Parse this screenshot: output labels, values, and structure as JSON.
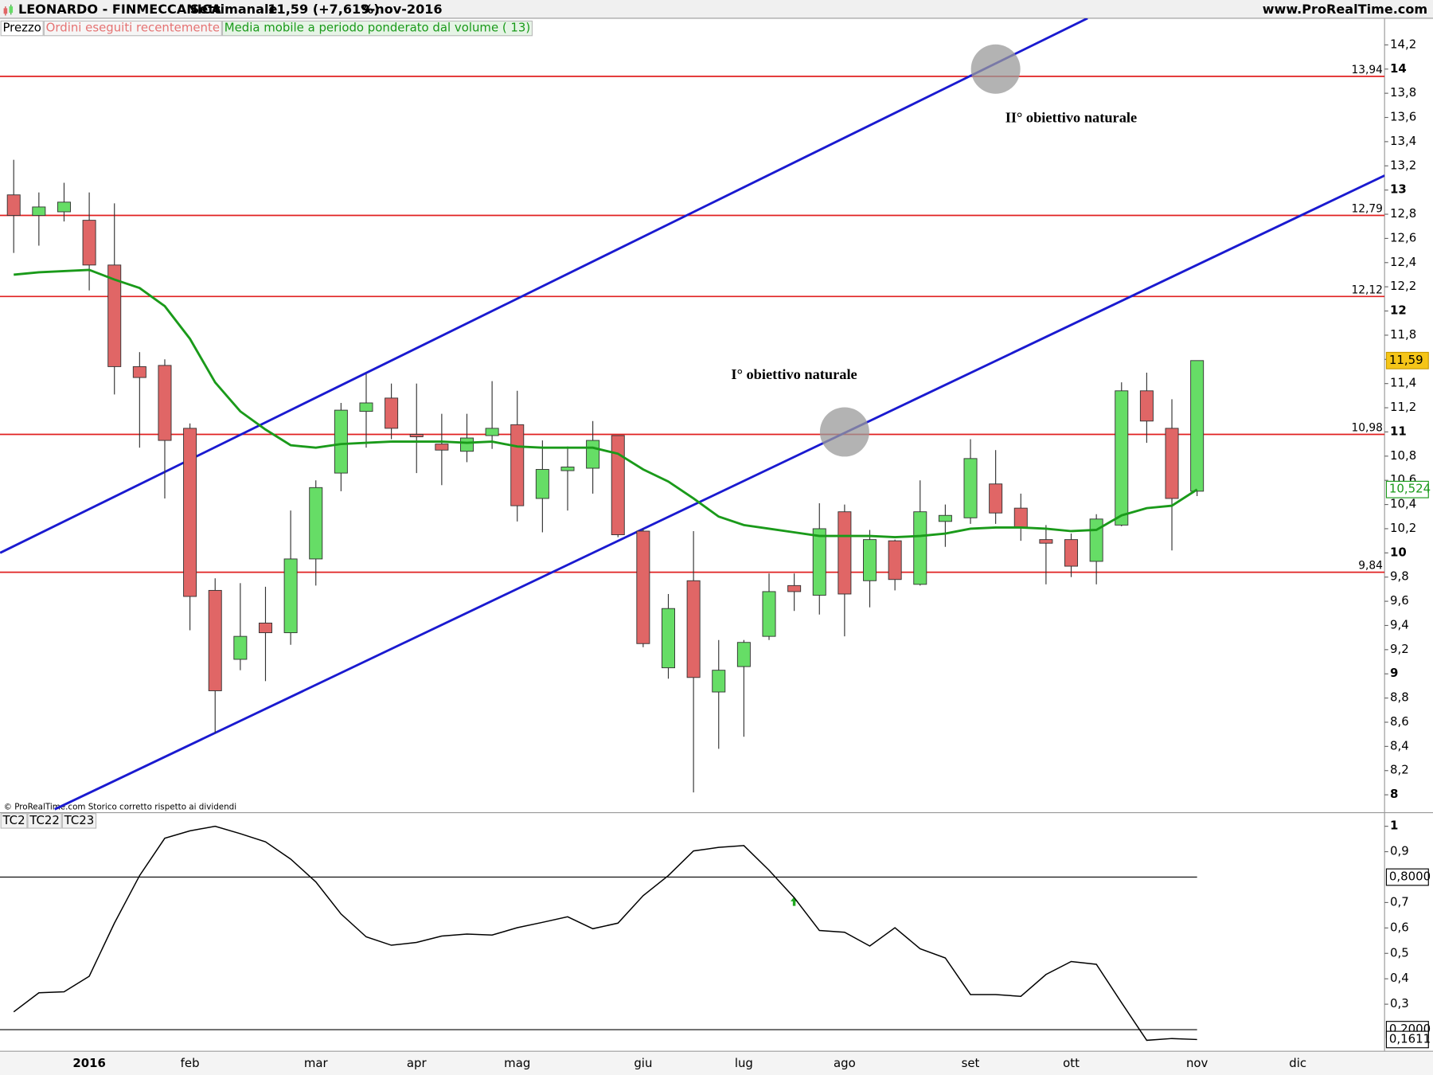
{
  "header": {
    "title": "LEONARDO - FINMECCANICA",
    "period": "Settimanale",
    "quote": "11,59 (+7,61%)",
    "date": "9-nov-2016",
    "site": "www.ProRealTime.com"
  },
  "source": "© ProRealTime.com  Storico corretto rispetto ai dividendi",
  "chart_data": [
    {
      "type": "candlestick",
      "tabs": [
        "Prezzo",
        "Ordini eseguiti recentemente"
      ],
      "categories": [
        null,
        null,
        null,
        "2016",
        null,
        null,
        null,
        "feb",
        null,
        null,
        null,
        null,
        "mar",
        null,
        null,
        null,
        "apr",
        null,
        null,
        null,
        "mag",
        null,
        null,
        null,
        null,
        "giu",
        null,
        null,
        null,
        "lug",
        null,
        null,
        null,
        "ago",
        null,
        null,
        null,
        null,
        "set",
        null,
        null,
        null,
        "ott",
        null,
        null,
        null,
        null,
        "nov",
        null,
        null,
        null,
        "dic"
      ],
      "open": [
        12.96,
        12.79,
        12.82,
        12.75,
        12.38,
        11.54,
        11.55,
        11.03,
        9.69,
        9.12,
        9.42,
        9.34,
        9.95,
        10.66,
        11.17,
        11.28,
        10.98,
        10.9,
        10.84,
        10.97,
        11.06,
        10.45,
        10.68,
        10.7,
        10.97,
        10.18,
        9.05,
        9.77,
        8.85,
        9.06,
        9.31,
        9.73,
        9.65,
        10.34,
        9.77,
        10.1,
        9.74,
        10.26,
        10.29,
        10.57,
        10.37,
        10.11,
        10.11,
        9.93,
        10.23,
        11.34,
        11.03,
        10.51,
        null,
        null,
        null,
        null
      ],
      "high": [
        13.25,
        12.98,
        13.06,
        12.98,
        12.89,
        11.66,
        11.6,
        11.07,
        9.79,
        9.75,
        9.72,
        10.35,
        10.6,
        11.24,
        11.48,
        11.4,
        11.4,
        11.15,
        11.15,
        11.42,
        11.34,
        10.93,
        10.88,
        11.09,
        10.97,
        10.2,
        9.66,
        10.18,
        9.28,
        9.28,
        9.83,
        9.83,
        10.41,
        10.4,
        10.19,
        10.11,
        10.6,
        10.4,
        10.94,
        10.85,
        10.49,
        10.23,
        10.16,
        10.32,
        11.41,
        11.49,
        11.27,
        11.59,
        null,
        null,
        null,
        null
      ],
      "low": [
        12.48,
        12.54,
        12.74,
        12.17,
        11.31,
        10.87,
        10.45,
        9.36,
        8.51,
        9.03,
        8.94,
        9.24,
        9.73,
        10.51,
        10.87,
        10.94,
        10.66,
        10.56,
        10.75,
        10.86,
        10.26,
        10.17,
        10.35,
        10.49,
        10.13,
        9.22,
        8.96,
        8.02,
        8.38,
        8.48,
        9.28,
        9.52,
        9.49,
        9.31,
        9.55,
        9.69,
        9.73,
        10.05,
        10.24,
        10.24,
        10.1,
        9.74,
        9.8,
        9.74,
        10.22,
        10.91,
        10.02,
        10.47,
        null,
        null,
        null,
        null
      ],
      "close": [
        12.79,
        12.86,
        12.9,
        12.38,
        11.54,
        11.45,
        10.93,
        9.64,
        8.86,
        9.31,
        9.34,
        9.95,
        10.54,
        11.18,
        11.24,
        11.03,
        10.96,
        10.85,
        10.95,
        11.03,
        10.39,
        10.69,
        10.71,
        10.93,
        10.15,
        9.25,
        9.54,
        8.97,
        9.03,
        9.26,
        9.68,
        9.68,
        10.2,
        9.66,
        10.11,
        9.78,
        10.34,
        10.31,
        10.78,
        10.33,
        10.21,
        10.08,
        9.89,
        10.28,
        11.34,
        11.09,
        10.45,
        11.59,
        null,
        null,
        null,
        null
      ],
      "up_color": "#66dd66",
      "down_color": "#e06666",
      "last_close": {
        "value": 11.59,
        "label": "11,59"
      },
      "series": [
        {
          "name": "Media mobile a periodo ponderato dal volume ( 13)",
          "color": "#1a9a1a",
          "values": [
            12.3,
            12.32,
            12.33,
            12.34,
            12.26,
            12.19,
            12.04,
            11.77,
            11.41,
            11.17,
            11.02,
            10.89,
            10.87,
            10.9,
            10.91,
            10.92,
            10.92,
            10.92,
            10.91,
            10.92,
            10.88,
            10.87,
            10.87,
            10.87,
            10.82,
            10.69,
            10.59,
            10.45,
            10.3,
            10.23,
            10.2,
            10.17,
            10.14,
            10.14,
            10.14,
            10.13,
            10.14,
            10.16,
            10.2,
            10.21,
            10.21,
            10.2,
            10.18,
            10.19,
            10.31,
            10.37,
            10.39,
            10.524,
            null,
            null,
            null,
            null
          ],
          "last": {
            "value": 10.524,
            "label": "10,524"
          }
        }
      ],
      "levels": [
        {
          "value": 13.94,
          "label": "13,94"
        },
        {
          "value": 12.79,
          "label": "12,79"
        },
        {
          "value": 12.12,
          "label": "12,12"
        },
        {
          "value": 10.98,
          "label": "10,98"
        },
        {
          "value": 9.84,
          "label": "9,84"
        }
      ],
      "level_color": "#e02020",
      "trendlines": [
        {
          "x": [
            -0.54,
            42.65
          ],
          "y": [
            10.0,
            14.42
          ]
        },
        {
          "x": [
            1.63,
            54.45
          ],
          "y": [
            7.88,
            13.12
          ]
        }
      ],
      "trendline_color": "#1a1ad0",
      "targets": {
        "x": [
          39,
          33
        ],
        "y": [
          14.0,
          11.0
        ]
      },
      "annotations": [
        "II° obiettivo naturale",
        "I° obiettivo naturale"
      ],
      "ylim": [
        7.86,
        14.42
      ],
      "yticks": [
        8,
        {
          "value": 8.2,
          "label": "8,2"
        },
        {
          "value": 8.4,
          "label": "8,4"
        },
        {
          "value": 8.6,
          "label": "8,6"
        },
        {
          "value": 8.8,
          "label": "8,8"
        },
        9,
        {
          "value": 9.2,
          "label": "9,2"
        },
        {
          "value": 9.4,
          "label": "9,4"
        },
        {
          "value": 9.6,
          "label": "9,6"
        },
        {
          "value": 9.8,
          "label": "9,8"
        },
        10,
        {
          "value": 10.2,
          "label": "10,2"
        },
        {
          "value": 10.4,
          "label": "10,4"
        },
        {
          "value": 10.6,
          "label": "10,6"
        },
        {
          "value": 10.8,
          "label": "10,8"
        },
        11,
        {
          "value": 11.2,
          "label": "11,2"
        },
        {
          "value": 11.4,
          "label": "11,4"
        },
        {
          "value": 11.6,
          "label": "11,6"
        },
        {
          "value": 11.8,
          "label": "11,8"
        },
        12,
        {
          "value": 12.2,
          "label": "12,2"
        },
        {
          "value": 12.4,
          "label": "12,4"
        },
        {
          "value": 12.6,
          "label": "12,6"
        },
        {
          "value": 12.8,
          "label": "12,8"
        },
        13,
        {
          "value": 13.2,
          "label": "13,2"
        },
        {
          "value": 13.4,
          "label": "13,4"
        },
        {
          "value": 13.6,
          "label": "13,6"
        },
        {
          "value": 13.8,
          "label": "13,8"
        },
        14,
        {
          "value": 14.2,
          "label": "14,2"
        }
      ]
    },
    {
      "type": "line",
      "tabs": [
        "TC2",
        "TC22",
        "TC23"
      ],
      "color": "#000000",
      "values": [
        0.27,
        0.345,
        0.349,
        0.41,
        0.619,
        0.806,
        0.953,
        0.982,
        1.0,
        0.971,
        0.939,
        0.871,
        0.781,
        0.655,
        0.565,
        0.532,
        0.543,
        0.568,
        0.576,
        0.572,
        0.601,
        0.622,
        0.644,
        0.597,
        0.619,
        0.727,
        0.806,
        0.903,
        0.917,
        0.924,
        0.827,
        0.719,
        0.59,
        0.583,
        0.529,
        0.601,
        0.518,
        0.482,
        0.338,
        0.338,
        0.331,
        0.417,
        0.468,
        0.457,
        0.306,
        0.158,
        0.165,
        0.1611,
        null,
        null,
        null,
        null
      ],
      "last": {
        "value": 0.1611,
        "label": "0,1611"
      },
      "levels": [
        {
          "value": 0.8,
          "label": "0,8000"
        },
        {
          "value": 0.2,
          "label": "0,2000"
        }
      ],
      "ylim": [
        0.115,
        1.05
      ],
      "yticks": [
        {
          "value": 0.3,
          "label": "0,3"
        },
        {
          "value": 0.4,
          "label": "0,4"
        },
        {
          "value": 0.5,
          "label": "0,5"
        },
        {
          "value": 0.6,
          "label": "0,6"
        },
        {
          "value": 0.7,
          "label": "0,7"
        },
        {
          "value": 0.9,
          "label": "0,9"
        },
        1
      ]
    }
  ]
}
